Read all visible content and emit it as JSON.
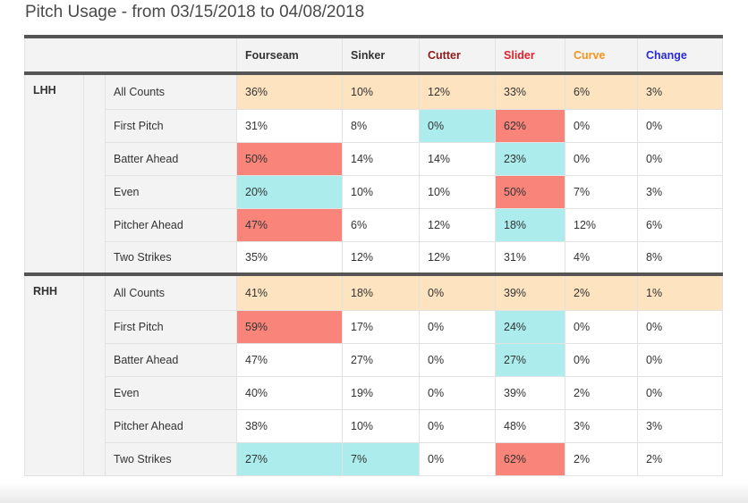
{
  "title": "Pitch Usage - from 03/15/2018 to 04/08/2018",
  "colors": {
    "header_text": "#333333",
    "cutter": "#8b1a1a",
    "slider": "#e0222f",
    "curve": "#f7941d",
    "change": "#2a2adb",
    "all_counts_bg": "#fde3bf",
    "high_bg": "#f8847a",
    "low_bg": "#acecec"
  },
  "columns": [
    {
      "label": "Fourseam",
      "color": "#333333"
    },
    {
      "label": "Sinker",
      "color": "#333333"
    },
    {
      "label": "Cutter",
      "color": "#8b1a1a"
    },
    {
      "label": "Slider",
      "color": "#e0222f"
    },
    {
      "label": "Curve",
      "color": "#f7941d"
    },
    {
      "label": "Change",
      "color": "#2a2adb"
    }
  ],
  "groups": [
    {
      "label": "LHH",
      "rows": [
        {
          "count": "All Counts",
          "values": [
            "36%",
            "10%",
            "12%",
            "33%",
            "6%",
            "3%"
          ],
          "highlights": [
            "",
            "",
            "",
            "",
            "",
            ""
          ]
        },
        {
          "count": "First Pitch",
          "values": [
            "31%",
            "8%",
            "0%",
            "62%",
            "0%",
            "0%"
          ],
          "highlights": [
            "",
            "",
            "lo",
            "hi",
            "",
            ""
          ]
        },
        {
          "count": "Batter Ahead",
          "values": [
            "50%",
            "14%",
            "14%",
            "23%",
            "0%",
            "0%"
          ],
          "highlights": [
            "hi",
            "",
            "",
            "lo",
            "",
            ""
          ]
        },
        {
          "count": "Even",
          "values": [
            "20%",
            "10%",
            "10%",
            "50%",
            "7%",
            "3%"
          ],
          "highlights": [
            "lo",
            "",
            "",
            "hi",
            "",
            ""
          ]
        },
        {
          "count": "Pitcher Ahead",
          "values": [
            "47%",
            "6%",
            "12%",
            "18%",
            "12%",
            "6%"
          ],
          "highlights": [
            "hi",
            "",
            "",
            "lo",
            "",
            ""
          ]
        },
        {
          "count": "Two Strikes",
          "values": [
            "35%",
            "12%",
            "12%",
            "31%",
            "4%",
            "8%"
          ],
          "highlights": [
            "",
            "",
            "",
            "",
            "",
            ""
          ]
        }
      ]
    },
    {
      "label": "RHH",
      "rows": [
        {
          "count": "All Counts",
          "values": [
            "41%",
            "18%",
            "0%",
            "39%",
            "2%",
            "1%"
          ],
          "highlights": [
            "",
            "",
            "",
            "",
            "",
            ""
          ]
        },
        {
          "count": "First Pitch",
          "values": [
            "59%",
            "17%",
            "0%",
            "24%",
            "0%",
            "0%"
          ],
          "highlights": [
            "hi",
            "",
            "",
            "lo",
            "",
            ""
          ]
        },
        {
          "count": "Batter Ahead",
          "values": [
            "47%",
            "27%",
            "0%",
            "27%",
            "0%",
            "0%"
          ],
          "highlights": [
            "",
            "",
            "",
            "lo",
            "",
            ""
          ]
        },
        {
          "count": "Even",
          "values": [
            "40%",
            "19%",
            "0%",
            "39%",
            "2%",
            "0%"
          ],
          "highlights": [
            "",
            "",
            "",
            "",
            "",
            ""
          ]
        },
        {
          "count": "Pitcher Ahead",
          "values": [
            "38%",
            "10%",
            "0%",
            "48%",
            "3%",
            "3%"
          ],
          "highlights": [
            "",
            "",
            "",
            "",
            "",
            ""
          ]
        },
        {
          "count": "Two Strikes",
          "values": [
            "27%",
            "7%",
            "0%",
            "62%",
            "2%",
            "2%"
          ],
          "highlights": [
            "lo",
            "lo",
            "",
            "hi",
            "",
            ""
          ]
        }
      ]
    }
  ]
}
